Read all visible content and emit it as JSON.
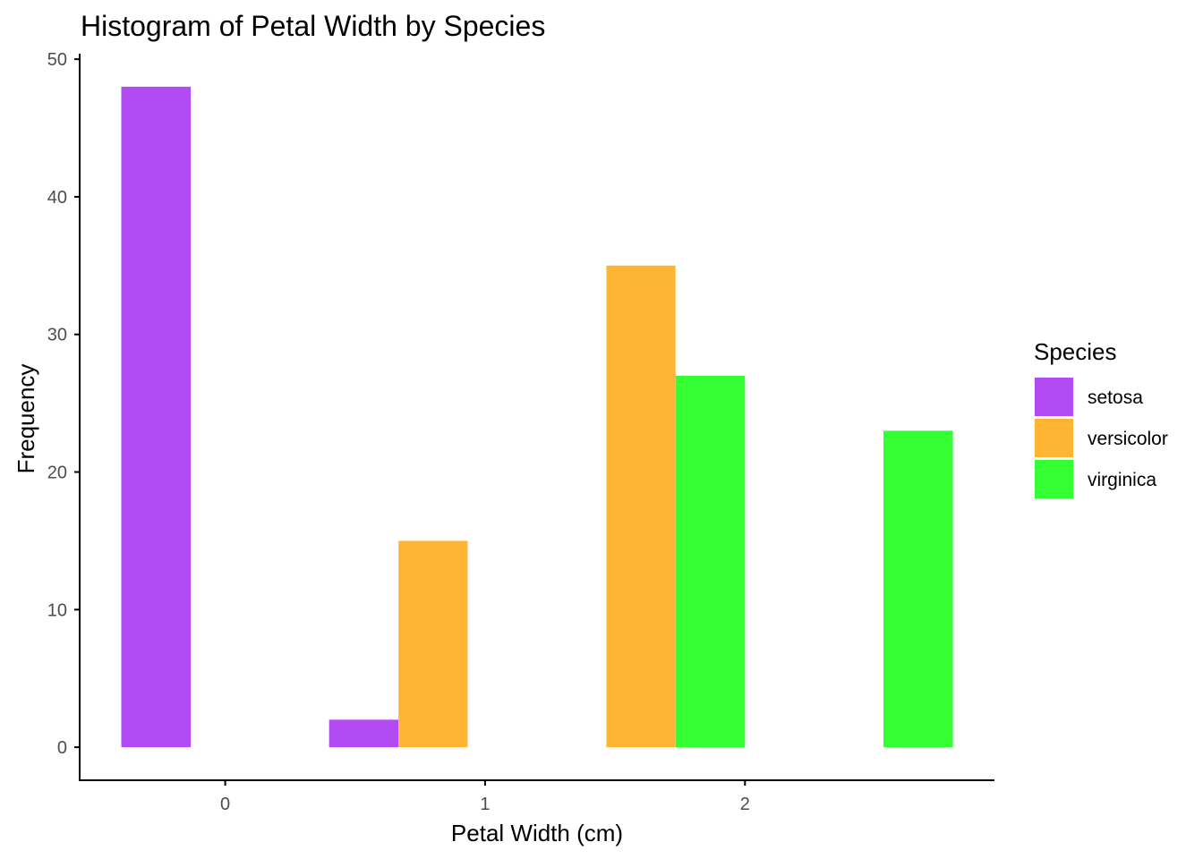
{
  "chart_data": {
    "type": "bar",
    "title": "Histogram of Petal Width by Species",
    "xlabel": "Petal Width (cm)",
    "ylabel": "Frequency",
    "xlim": [
      -0.56,
      2.96
    ],
    "ylim": [
      -2.4,
      50.4
    ],
    "x_ticks": [
      0,
      1,
      2
    ],
    "y_ticks": [
      0,
      10,
      20,
      30,
      40,
      50
    ],
    "grid": false,
    "legend": {
      "title": "Species",
      "position": "right"
    },
    "series": [
      {
        "name": "setosa",
        "color": "#B24BF3",
        "bars": [
          {
            "x0": -0.4,
            "x1": -0.133,
            "value": 48
          },
          {
            "x0": 0.4,
            "x1": 0.667,
            "value": 2
          }
        ]
      },
      {
        "name": "versicolor",
        "color": "#FFB534",
        "bars": [
          {
            "x0": 0.667,
            "x1": 0.933,
            "value": 15
          },
          {
            "x0": 1.467,
            "x1": 1.733,
            "value": 35
          }
        ]
      },
      {
        "name": "virginica",
        "color": "#33FF33",
        "bars": [
          {
            "x0": 1.733,
            "x1": 2.0,
            "value": 27
          },
          {
            "x0": 2.533,
            "x1": 2.8,
            "value": 23
          }
        ]
      }
    ]
  }
}
